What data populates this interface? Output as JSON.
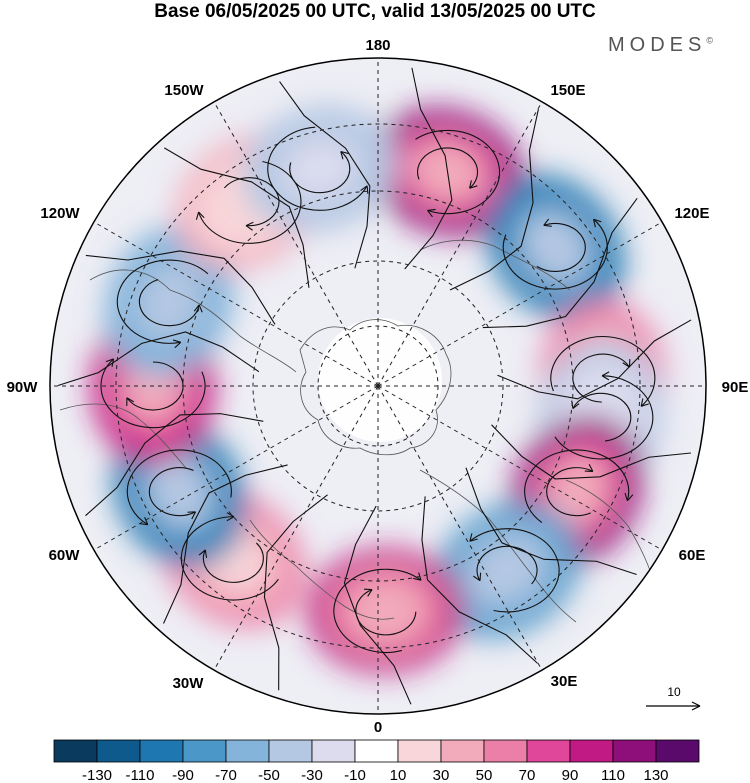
{
  "title": "Base 06/05/2025 00 UTC, valid 13/05/2025 00 UTC",
  "brand": "MODES",
  "brand_mark": "©",
  "longitude_labels": {
    "lon_180": "180",
    "lon_150e": "150E",
    "lon_120e": "120E",
    "lon_90e": "90E",
    "lon_60e": "60E",
    "lon_30e": "30E",
    "lon_0": "0",
    "lon_30w": "30W",
    "lon_60w": "60W",
    "lon_90w": "90W",
    "lon_120w": "120W",
    "lon_150w": "150W"
  },
  "reference_vector": {
    "label": "10"
  },
  "colorbar": {
    "colors": [
      "#0b3a5f",
      "#0f5a8c",
      "#1e77b0",
      "#4b98c8",
      "#84b4da",
      "#b5c8e3",
      "#dcdcee",
      "#ffffff",
      "#f8d6d9",
      "#f2abbb",
      "#ec7fa8",
      "#e0479b",
      "#c21a85",
      "#8e0f7a",
      "#5a0a6a"
    ],
    "labels": [
      "-130",
      "-110",
      "-90",
      "-70",
      "-50",
      "-30",
      "-10",
      "10",
      "30",
      "50",
      "70",
      "90",
      "110",
      "130"
    ]
  },
  "anomaly_centers": [
    {
      "lon_deg": 162,
      "sign": "positive",
      "value": 110
    },
    {
      "lon_deg": 128,
      "sign": "negative",
      "value": -100
    },
    {
      "lon_deg": 92,
      "sign": "positive",
      "value": 60
    },
    {
      "lon_deg": 82,
      "sign": "negative",
      "value": -40
    },
    {
      "lon_deg": 62,
      "sign": "positive",
      "value": 110
    },
    {
      "lon_deg": 35,
      "sign": "negative",
      "value": -80
    },
    {
      "lon_deg": 2,
      "sign": "positive",
      "value": 90
    },
    {
      "lon_deg": -40,
      "sign": "positive",
      "value": 50
    },
    {
      "lon_deg": -62,
      "sign": "negative",
      "value": -100
    },
    {
      "lon_deg": -90,
      "sign": "positive",
      "value": 100
    },
    {
      "lon_deg": -112,
      "sign": "negative",
      "value": -70
    },
    {
      "lon_deg": -145,
      "sign": "positive",
      "value": 40
    },
    {
      "lon_deg": -165,
      "sign": "negative",
      "value": -50
    }
  ]
}
